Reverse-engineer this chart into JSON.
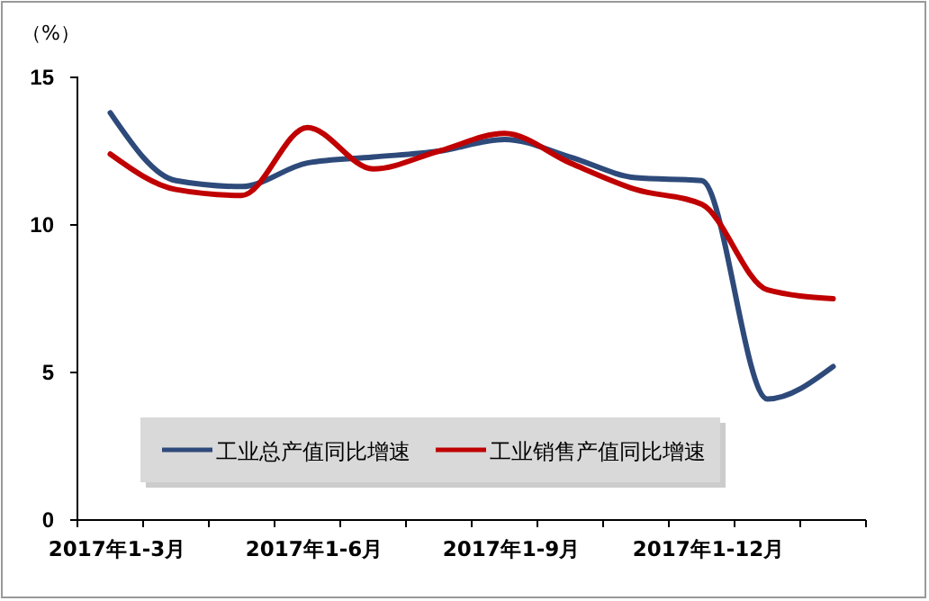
{
  "chart_data": {
    "type": "line",
    "ylabel": "（%）",
    "categories": [
      "2017年1-3月",
      null,
      null,
      "2017年1-6月",
      null,
      null,
      "2017年1-9月",
      null,
      null,
      "2017年1-12月",
      null,
      null
    ],
    "series": [
      {
        "name": "工业总产值同比增速",
        "color": "#2e4a7a",
        "values": [
          13.8,
          11.5,
          11.3,
          12.1,
          12.3,
          12.5,
          12.9,
          12.3,
          11.6,
          11.5,
          4.1,
          5.2
        ]
      },
      {
        "name": "工业销售产值同比增速",
        "color": "#c00000",
        "values": [
          12.4,
          11.2,
          11.0,
          13.3,
          11.9,
          12.5,
          13.1,
          12.1,
          11.2,
          10.7,
          7.8,
          7.5
        ]
      }
    ],
    "ylim": [
      0,
      15
    ],
    "yticks": [
      0,
      5,
      10,
      15
    ],
    "grid": false,
    "legend": "bottom",
    "marker": "none",
    "line_style": "solid"
  }
}
